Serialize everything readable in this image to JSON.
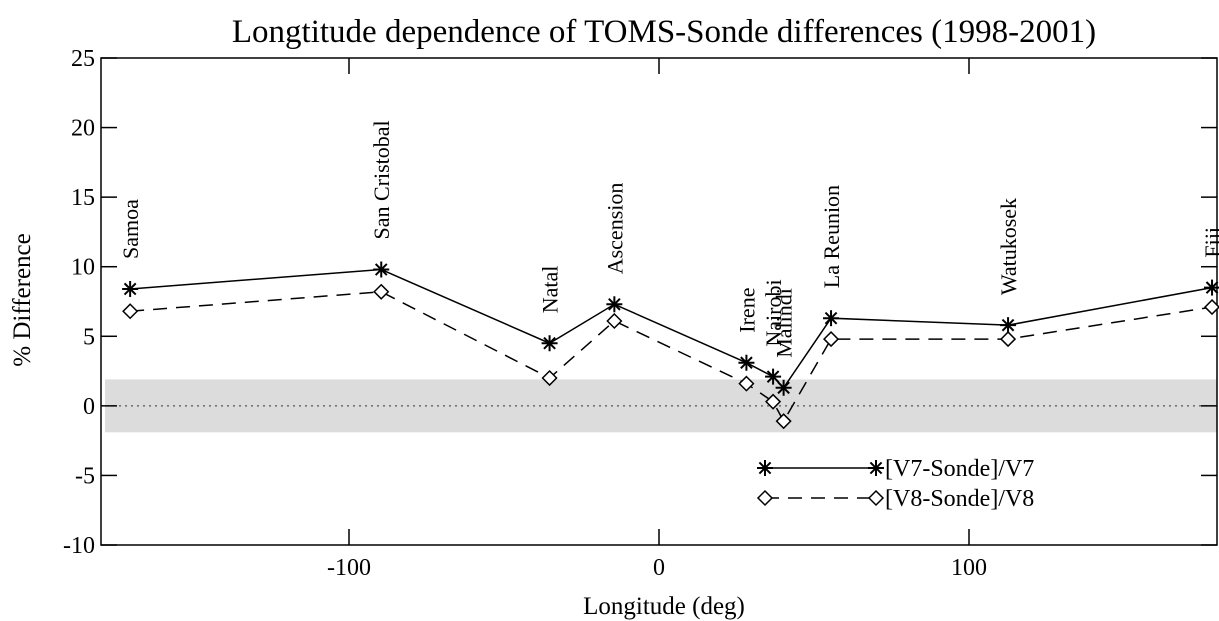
{
  "chart_data": {
    "type": "line",
    "title": "Longtitude dependence of TOMS-Sonde differences (1998-2001)",
    "x_label": "Longitude (deg)",
    "y_label": "% Difference",
    "x": [
      -170.6,
      -89.6,
      -35.3,
      -14.4,
      28.2,
      36.8,
      40.2,
      55.5,
      112.6,
      178.4
    ],
    "point_labels": [
      "Samoa",
      "San Cristobal",
      "Natal",
      "Ascension",
      "Irene",
      "Nairobi",
      "Malindi",
      "La Reunion",
      "Watukosek",
      "Fiji"
    ],
    "series": [
      {
        "name": "[V7-Sonde]/V7",
        "color": "#000000",
        "marker": "asterisk",
        "linestyle": "solid",
        "values": [
          8.4,
          9.8,
          4.5,
          7.3,
          3.1,
          2.1,
          1.3,
          6.3,
          5.8,
          8.5
        ]
      },
      {
        "name": "[V8-Sonde]/V8",
        "color": "#000000",
        "marker": "diamond",
        "linestyle": "dashed",
        "values": [
          6.8,
          8.2,
          2.0,
          6.1,
          1.6,
          0.3,
          -1.1,
          4.8,
          4.8,
          7.1
        ]
      }
    ],
    "band": [
      -1.9,
      1.9
    ],
    "band_color": "#dcdcdc",
    "zero_line": true,
    "xlim": [
      -180,
      180
    ],
    "xticks": [
      -100,
      0,
      100
    ],
    "ylim": [
      -10,
      25
    ],
    "yticks": [
      -10,
      -5,
      0,
      5,
      10,
      15,
      20,
      25
    ],
    "legend": "lower right"
  }
}
